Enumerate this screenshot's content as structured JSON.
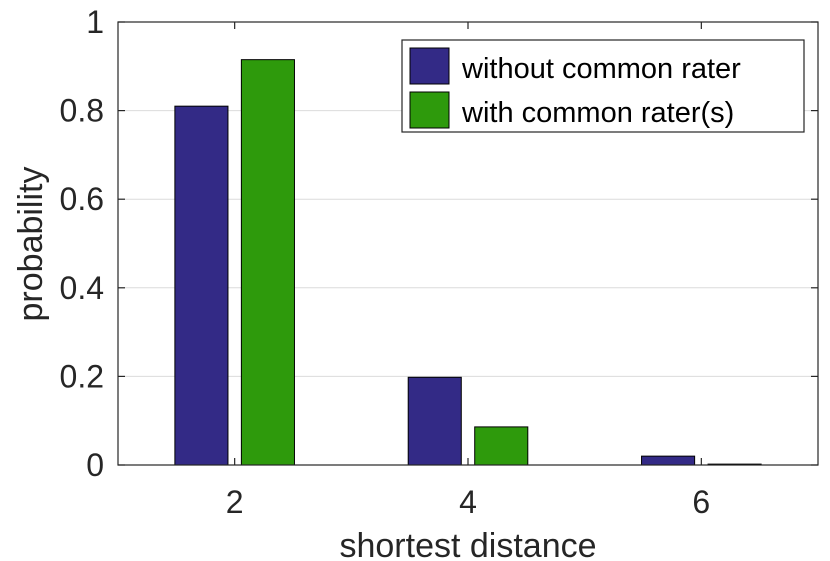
{
  "chart_data": {
    "type": "bar",
    "categories": [
      "2",
      "4",
      "6"
    ],
    "x": [
      2,
      4,
      6
    ],
    "xlabel": "shortest distance",
    "ylabel": "probability",
    "xlim": [
      1,
      7
    ],
    "ylim": [
      0,
      1
    ],
    "yticks": [
      0,
      0.2,
      0.4,
      0.6,
      0.8,
      1
    ],
    "ytick_labels": [
      "0",
      "0.2",
      "0.4",
      "0.6",
      "0.8",
      "1"
    ],
    "xticks": [
      2,
      4,
      6
    ],
    "xtick_labels": [
      "2",
      "4",
      "6"
    ],
    "grid": "y",
    "legend_position": "top-right",
    "series": [
      {
        "name": "without common rater",
        "color": "#332a86",
        "values": [
          0.81,
          0.198,
          0.02
        ]
      },
      {
        "name": "with common rater(s)",
        "color": "#2e9a0c",
        "values": [
          0.915,
          0.086,
          0.002
        ]
      }
    ]
  }
}
